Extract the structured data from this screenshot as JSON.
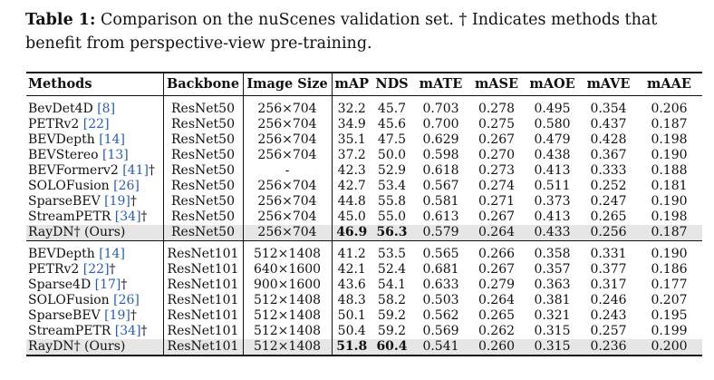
{
  "caption": {
    "label": "Table 1:",
    "text": " Comparison on the nuScenes validation set. † Indicates methods that benefit from perspective-view pre-training."
  },
  "table": {
    "headers": [
      "Methods",
      "Backbone",
      "Image Size",
      "mAP",
      "NDS",
      "mATE",
      "mASE",
      "mAOE",
      "mAVE",
      "mAAE"
    ],
    "groups": [
      {
        "rows": [
          {
            "name": "BevDet4D ",
            "ref": "[8]",
            "suffix": "",
            "backbone": "ResNet50",
            "size": "256×704",
            "map": "32.2",
            "nds": "45.7",
            "mate": "0.703",
            "mase": "0.278",
            "maoe": "0.495",
            "mave": "0.354",
            "maae": "0.206"
          },
          {
            "name": "PETRv2 ",
            "ref": "[22]",
            "suffix": "",
            "backbone": "ResNet50",
            "size": "256×704",
            "map": "34.9",
            "nds": "45.6",
            "mate": "0.700",
            "mase": "0.275",
            "maoe": "0.580",
            "mave": "0.437",
            "maae": "0.187"
          },
          {
            "name": "BEVDepth ",
            "ref": "[14]",
            "suffix": "",
            "backbone": "ResNet50",
            "size": "256×704",
            "map": "35.1",
            "nds": "47.5",
            "mate": "0.629",
            "mase": "0.267",
            "maoe": "0.479",
            "mave": "0.428",
            "maae": "0.198"
          },
          {
            "name": "BEVStereo ",
            "ref": "[13]",
            "suffix": "",
            "backbone": "ResNet50",
            "size": "256×704",
            "map": "37.2",
            "nds": "50.0",
            "mate": "0.598",
            "mase": "0.270",
            "maoe": "0.438",
            "mave": "0.367",
            "maae": "0.190"
          },
          {
            "name": "BEVFormerv2 ",
            "ref": "[41]",
            "suffix": "†",
            "backbone": "ResNet50",
            "size": "-",
            "map": "42.3",
            "nds": "52.9",
            "mate": "0.618",
            "mase": "0.273",
            "maoe": "0.413",
            "mave": "0.333",
            "maae": "0.188"
          },
          {
            "name": "SOLOFusion ",
            "ref": "[26]",
            "suffix": "",
            "backbone": "ResNet50",
            "size": "256×704",
            "map": "42.7",
            "nds": "53.4",
            "mate": "0.567",
            "mase": "0.274",
            "maoe": "0.511",
            "mave": "0.252",
            "maae": "0.181"
          },
          {
            "name": "SparseBEV ",
            "ref": "[19]",
            "suffix": "†",
            "backbone": "ResNet50",
            "size": "256×704",
            "map": "44.8",
            "nds": "55.8",
            "mate": "0.581",
            "mase": "0.271",
            "maoe": "0.373",
            "mave": "0.247",
            "maae": "0.190"
          },
          {
            "name": "StreamPETR ",
            "ref": "[34]",
            "suffix": "†",
            "backbone": "ResNet50",
            "size": "256×704",
            "map": "45.0",
            "nds": "55.0",
            "mate": "0.613",
            "mase": "0.267",
            "maoe": "0.413",
            "mave": "0.265",
            "maae": "0.198"
          },
          {
            "name": "RayDN† (Ours)",
            "ref": "",
            "suffix": "",
            "backbone": "ResNet50",
            "size": "256×704",
            "map": "46.9",
            "nds": "56.3",
            "mate": "0.579",
            "mase": "0.264",
            "maoe": "0.433",
            "mave": "0.256",
            "maae": "0.187",
            "highlight": true
          }
        ]
      },
      {
        "rows": [
          {
            "name": "BEVDepth ",
            "ref": "[14]",
            "suffix": "",
            "backbone": "ResNet101",
            "size": "512×1408",
            "map": "41.2",
            "nds": "53.5",
            "mate": "0.565",
            "mase": "0.266",
            "maoe": "0.358",
            "mave": "0.331",
            "maae": "0.190"
          },
          {
            "name": "PETRv2 ",
            "ref": "[22]",
            "suffix": "†",
            "backbone": "ResNet101",
            "size": "640×1600",
            "map": "42.1",
            "nds": "52.4",
            "mate": "0.681",
            "mase": "0.267",
            "maoe": "0.357",
            "mave": "0.377",
            "maae": "0.186"
          },
          {
            "name": "Sparse4D ",
            "ref": "[17]",
            "suffix": "†",
            "backbone": "ResNet101",
            "size": "900×1600",
            "map": "43.6",
            "nds": "54.1",
            "mate": "0.633",
            "mase": "0.279",
            "maoe": "0.363",
            "mave": "0.317",
            "maae": "0.177"
          },
          {
            "name": "SOLOFusion ",
            "ref": "[26]",
            "suffix": "",
            "backbone": "ResNet101",
            "size": "512×1408",
            "map": "48.3",
            "nds": "58.2",
            "mate": "0.503",
            "mase": "0.264",
            "maoe": "0.381",
            "mave": "0.246",
            "maae": "0.207"
          },
          {
            "name": "SparseBEV ",
            "ref": "[19]",
            "suffix": "†",
            "backbone": "ResNet101",
            "size": "512×1408",
            "map": "50.1",
            "nds": "59.2",
            "mate": "0.562",
            "mase": "0.265",
            "maoe": "0.321",
            "mave": "0.243",
            "maae": "0.195"
          },
          {
            "name": "StreamPETR ",
            "ref": "[34]",
            "suffix": "†",
            "backbone": "ResNet101",
            "size": "512×1408",
            "map": "50.4",
            "nds": "59.2",
            "mate": "0.569",
            "mase": "0.262",
            "maoe": "0.315",
            "mave": "0.257",
            "maae": "0.199"
          },
          {
            "name": "RayDN† (Ours)",
            "ref": "",
            "suffix": "",
            "backbone": "ResNet101",
            "size": "512×1408",
            "map": "51.8",
            "nds": "60.4",
            "mate": "0.541",
            "mase": "0.260",
            "maoe": "0.315",
            "mave": "0.236",
            "maae": "0.200",
            "highlight": true
          }
        ]
      }
    ]
  }
}
